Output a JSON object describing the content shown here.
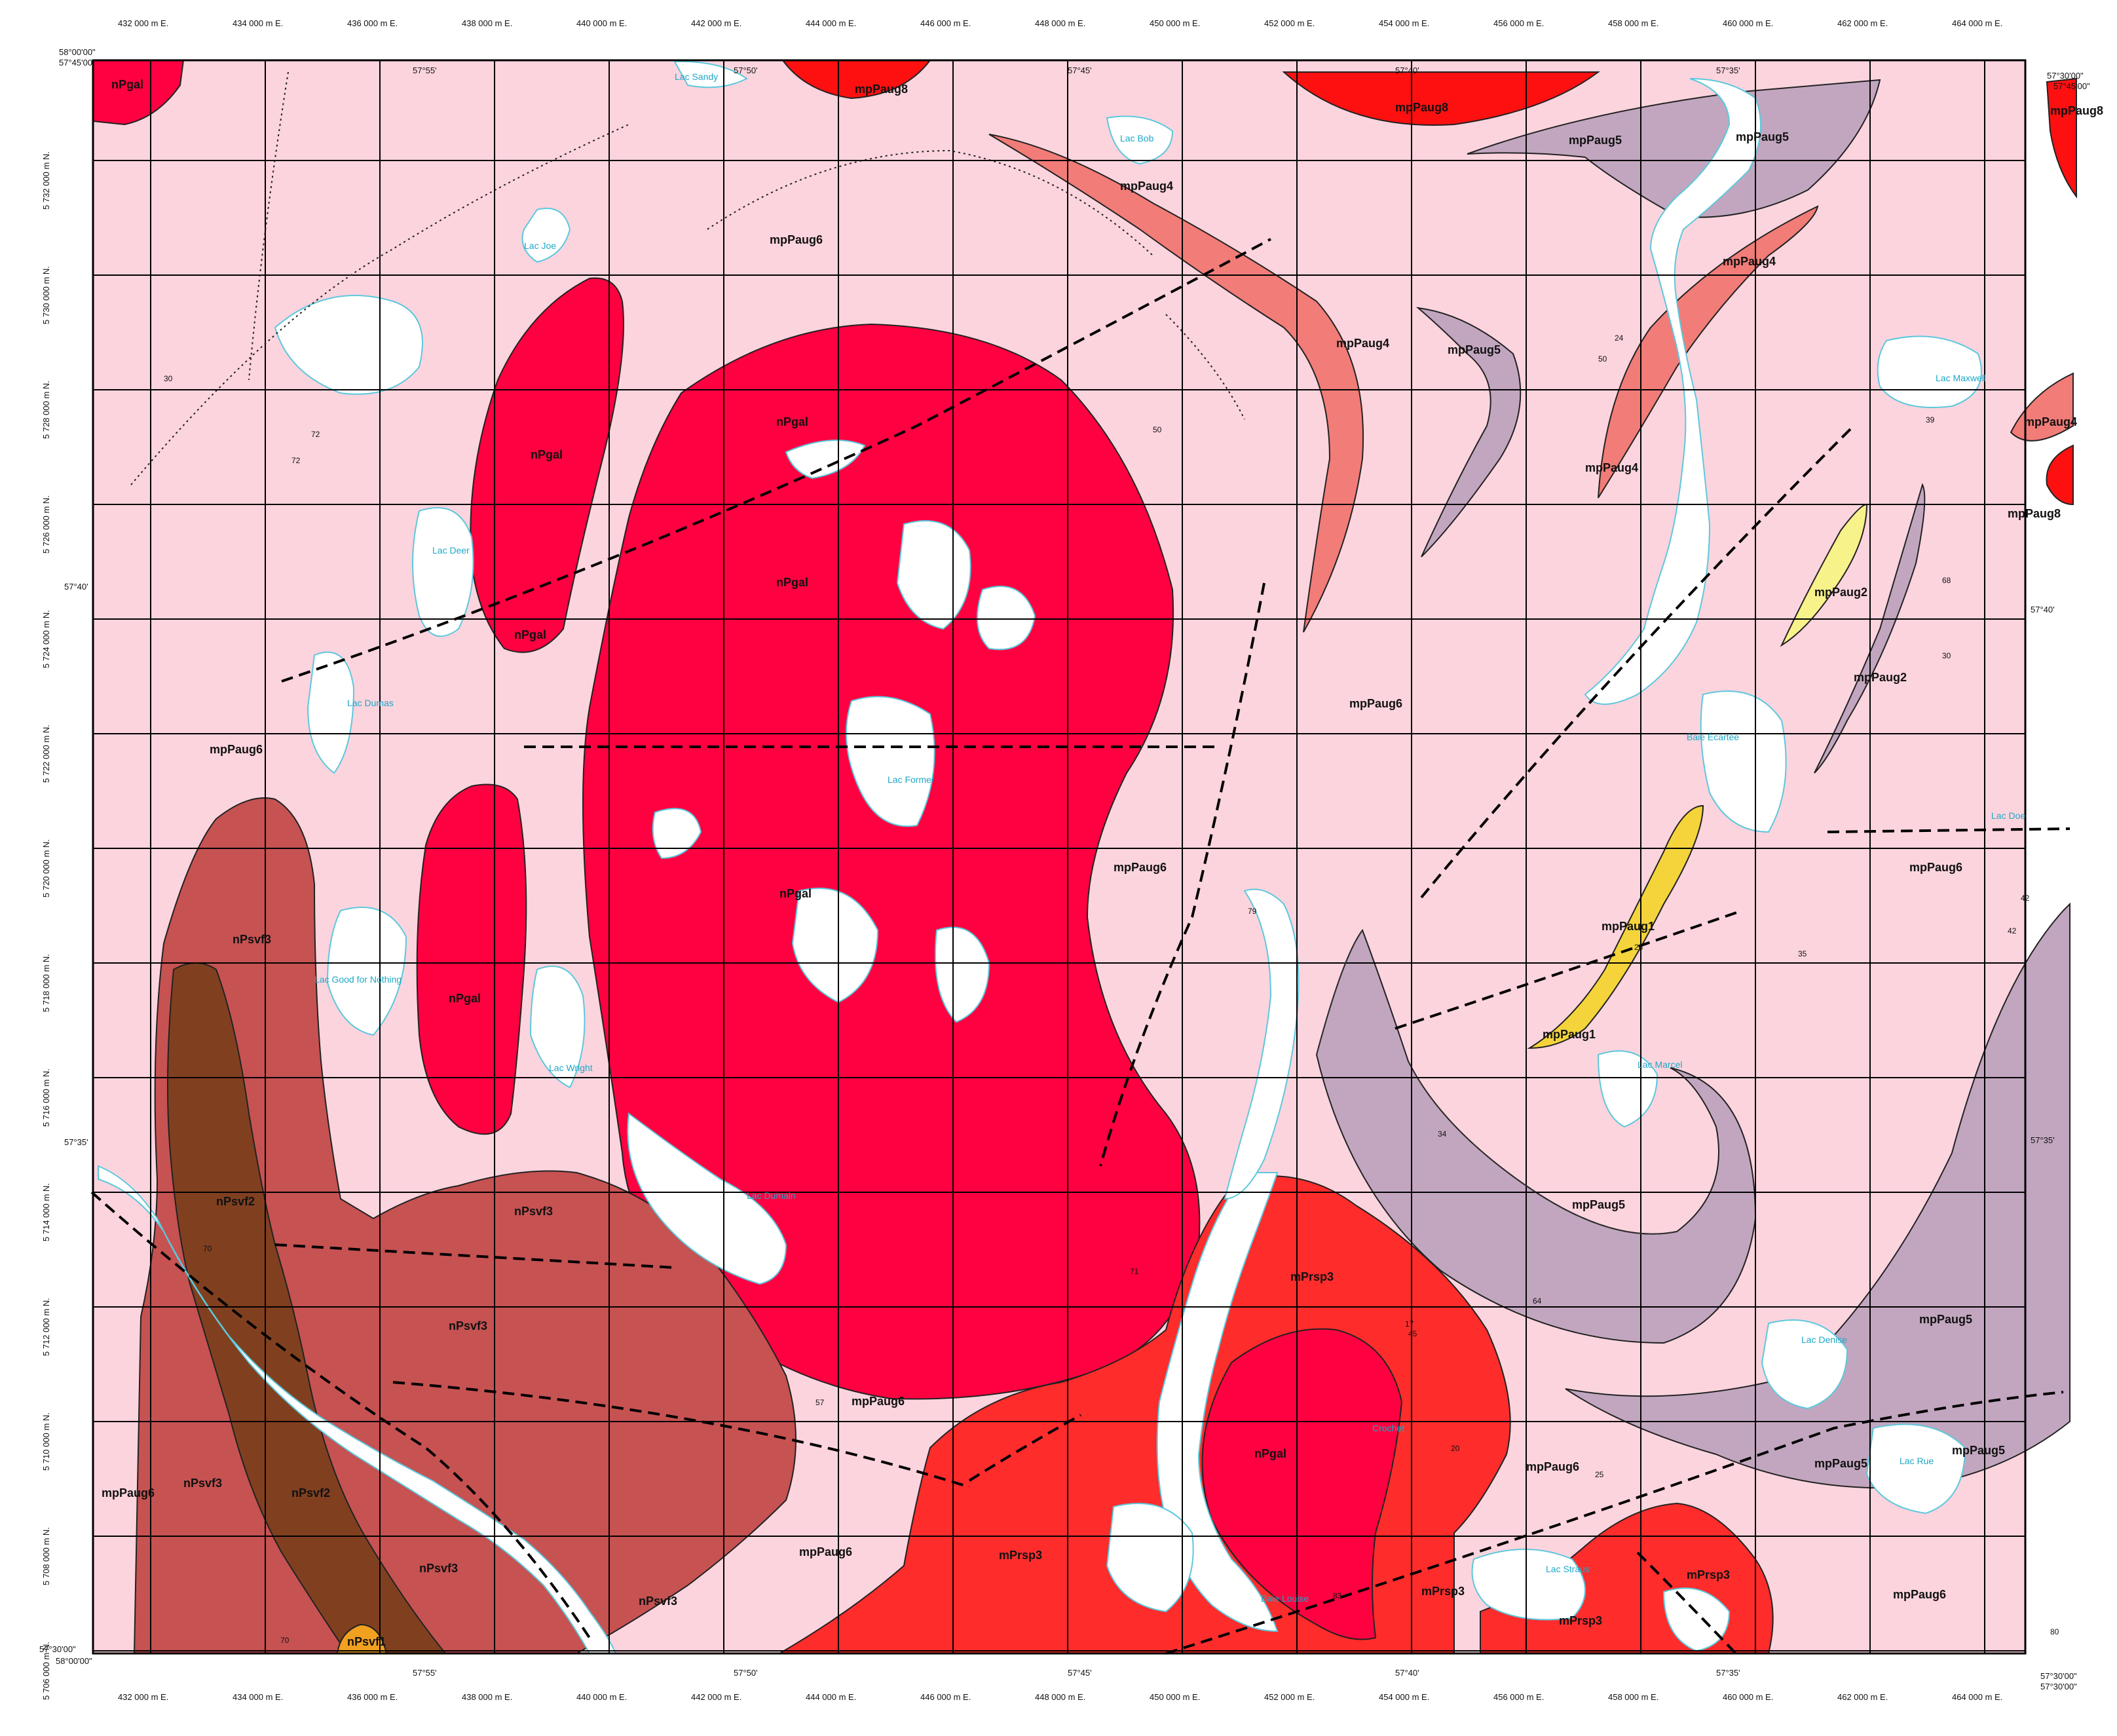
{
  "map": {
    "colors": {
      "background": "#fcd4de",
      "water": "#ffffff",
      "river": "#5cc8dc",
      "nPgal": "#ff0040",
      "mPrsp3": "#ff2c2c",
      "mpPaug8": "#ff1010",
      "mpPaug4": "#f27c78",
      "mpPaug5": "#c2a6bf",
      "mpPaug2": "#f8f28a",
      "mpPaug1": "#f4d43a",
      "nPsvf3": "#c65252",
      "nPsvf2": "#804020",
      "nPsvf1": "#f2a020",
      "grid": "#000000"
    },
    "easting_labels": [
      "432 000 m E.",
      "434 000 m E.",
      "436 000 m E.",
      "438 000 m E.",
      "440 000 m E.",
      "442 000 m E.",
      "444 000 m E.",
      "446 000 m E.",
      "448 000 m E.",
      "450 000 m E.",
      "452 000 m E.",
      "454 000 m E.",
      "456 000 m E.",
      "458 000 m E.",
      "460 000 m E.",
      "462 000 m E.",
      "464 000 m E."
    ],
    "northing_labels": [
      "5 732 000 m N.",
      "5 730 000 m N.",
      "5 728 000 m N.",
      "5 726 000 m N.",
      "5 724 000 m N.",
      "5 722 000 m N.",
      "5 720 000 m N.",
      "5 718 000 m N.",
      "5 716 000 m N.",
      "5 714 000 m N.",
      "5 712 000 m N.",
      "5 710 000 m N.",
      "5 708 000 m N.",
      "5 706 000 m N."
    ],
    "longitude_labels": [
      "57°55'",
      "57°50'",
      "57°45'",
      "57°40'",
      "57°35'"
    ],
    "latitude_labels": [
      "57°40'",
      "57°35'"
    ],
    "corner_labels": {
      "top_left_lat": "58°00'00\"",
      "top_left_lon": "57°45'00\"",
      "top_right_lon": "57°30'00\"",
      "top_right_lat": "57°45'00\"",
      "bottom_left_lat": "57°30'00\"",
      "bottom_left_lon": "58°00'00\"",
      "bottom_right_lon": "57°30'00\"",
      "bottom_right_lat": "57°30'00\""
    },
    "unit_labels": [
      "nPgal",
      "mpPaug8",
      "mpPaug6",
      "mpPaug5",
      "mpPaug4",
      "mpPaug2",
      "mpPaug1",
      "mPrsp3",
      "nPsvf3",
      "nPsvf2",
      "nPsvf1"
    ],
    "lake_labels": {
      "sandy": "Lac Sandy",
      "bob": "Lac Bob",
      "joe": "Lac Joe",
      "deer": "Lac Deer",
      "dumas": "Lac Dumas",
      "former": "Lac Former",
      "good": "Lac Good for Nothing",
      "wright": "Lac Wright",
      "dumain": "Lac Dumain",
      "maxwell": "Lac Maxwell",
      "ecartee": "Baie Écartée",
      "doe": "Lac Doe",
      "denise": "Lac Denise",
      "rue": "Lac Rue",
      "straus": "Lac Straus",
      "louise": "Baie Louise",
      "crochet": "Crochet",
      "marcel": "Lac Marcel"
    },
    "dip_values": [
      "30",
      "72",
      "72",
      "50",
      "70",
      "45",
      "24",
      "50",
      "39",
      "68",
      "30",
      "42",
      "42",
      "35",
      "26",
      "34",
      "64",
      "57",
      "17",
      "20",
      "25",
      "83",
      "70",
      "80",
      "71",
      "79"
    ]
  }
}
